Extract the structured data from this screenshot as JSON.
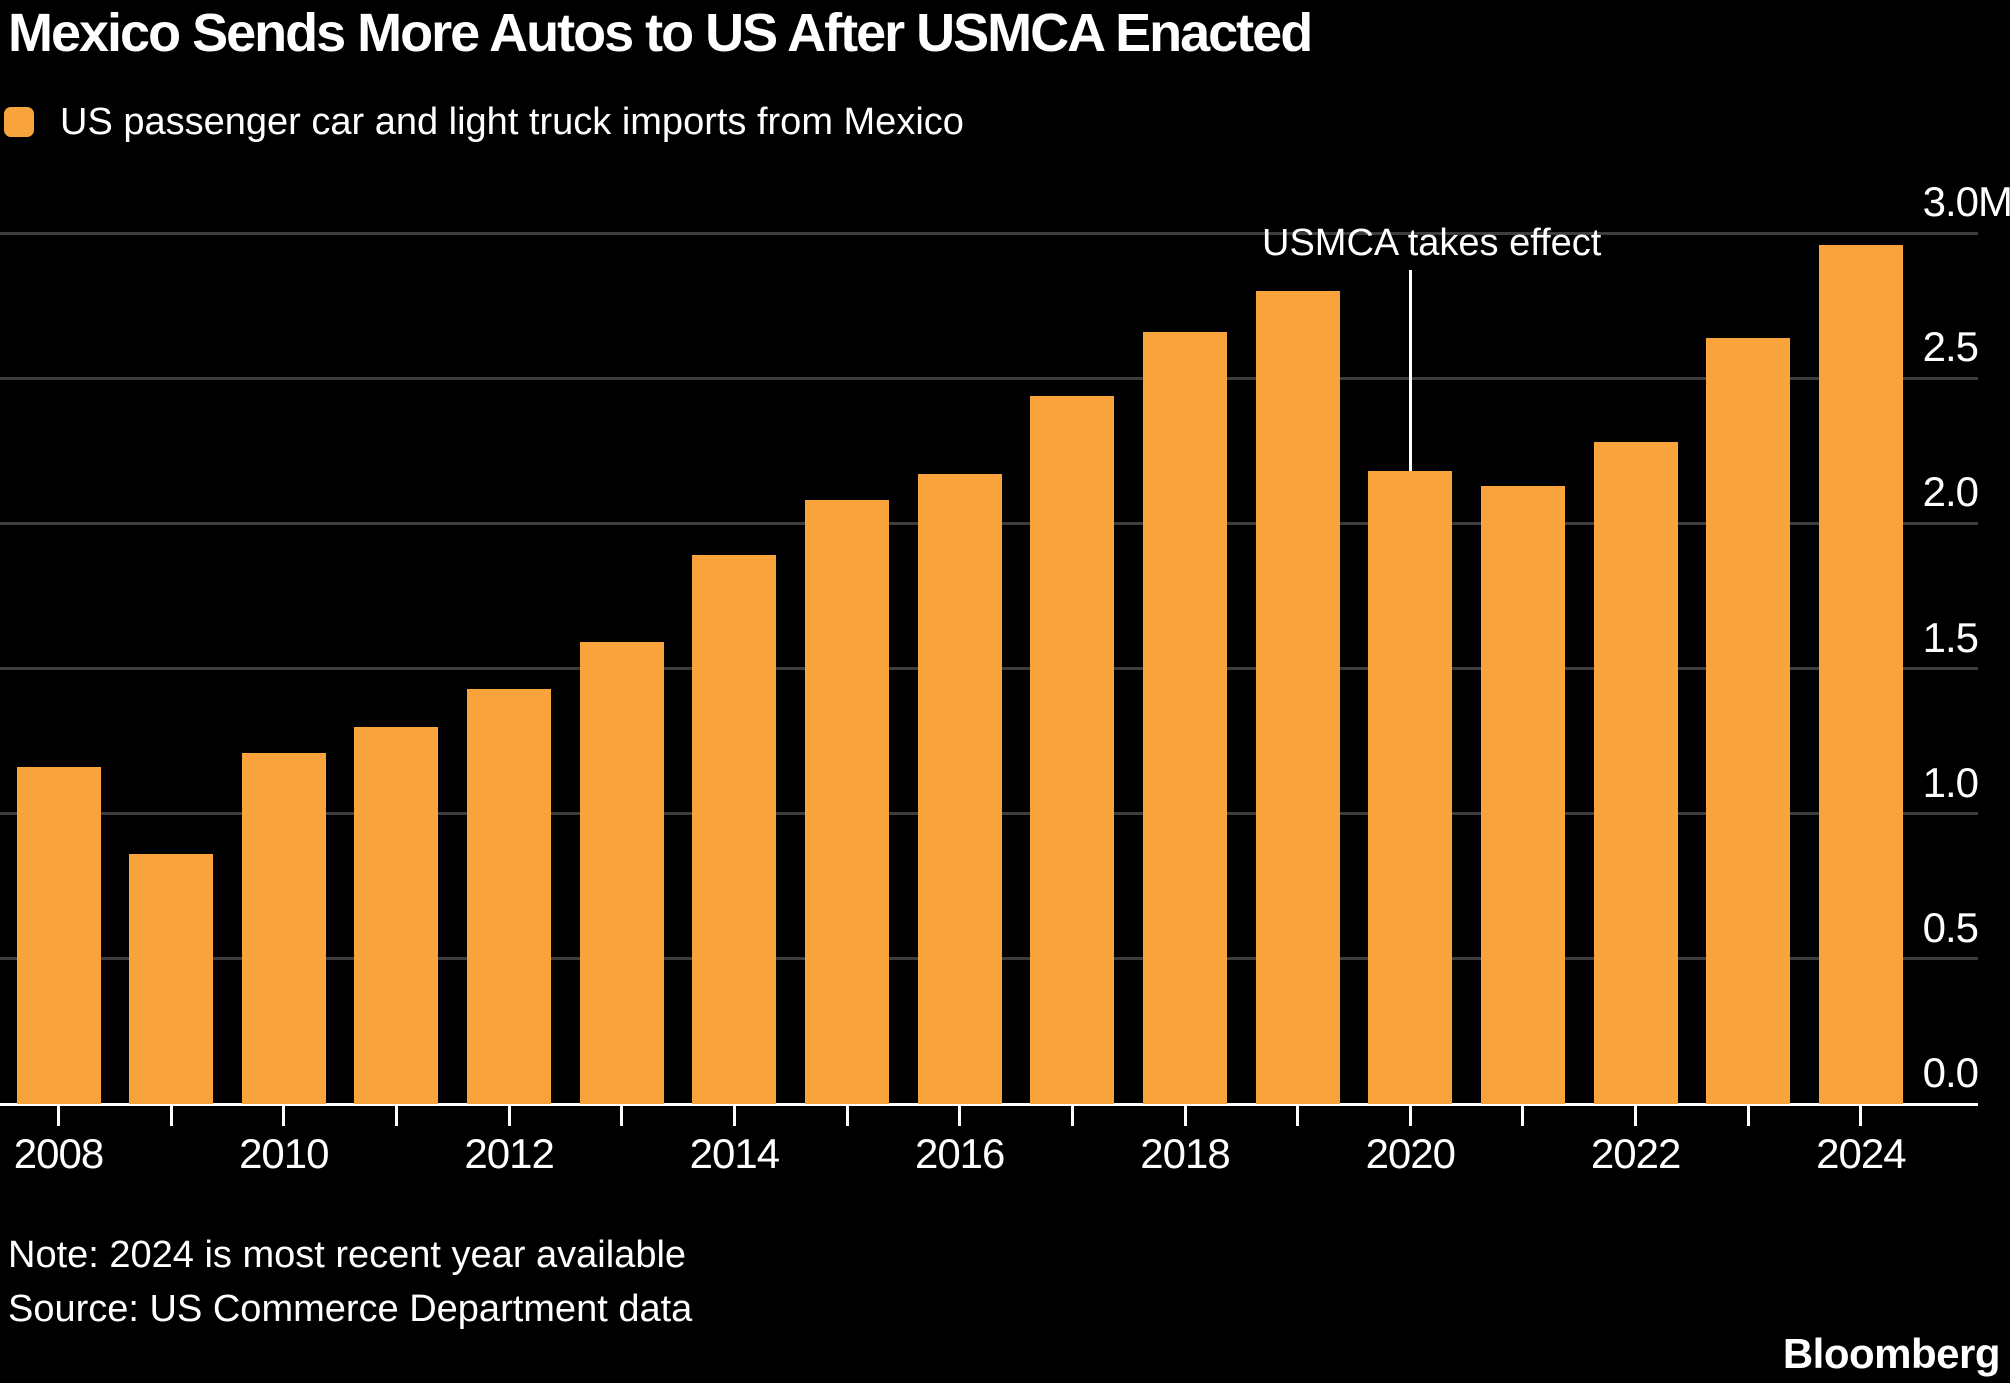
{
  "header": {
    "title": "Mexico Sends More Autos to US After USMCA Enacted",
    "legend_label": "US passenger car and light truck imports from Mexico"
  },
  "annotation": {
    "text": "USMCA takes effect",
    "year": 2020
  },
  "footer": {
    "note": "Note: 2024 is most recent year available",
    "source": "Source: US Commerce Department data",
    "logo": "Bloomberg"
  },
  "colors": {
    "background": "#000000",
    "bar": "#F8A33C",
    "gridline": "#3D3D3D",
    "axis_line": "#FFFFFF",
    "text": "#FFFFFF"
  },
  "chart_data": {
    "type": "bar",
    "title": "Mexico Sends More Autos to US After USMCA Enacted",
    "series_label": "US passenger car and light truck imports from Mexico",
    "unit": "million vehicles",
    "categories": [
      2008,
      2009,
      2010,
      2011,
      2012,
      2013,
      2014,
      2015,
      2016,
      2017,
      2018,
      2019,
      2020,
      2021,
      2022,
      2023,
      2024
    ],
    "values": [
      1.16,
      0.86,
      1.21,
      1.3,
      1.43,
      1.59,
      1.89,
      2.08,
      2.17,
      2.44,
      2.66,
      2.8,
      2.18,
      2.13,
      2.28,
      2.64,
      2.96
    ],
    "ylim": [
      0,
      3.0
    ],
    "y_ticks": [
      {
        "value": 3.0,
        "label": "3.0",
        "unit": "M"
      },
      {
        "value": 2.5,
        "label": "2.5",
        "unit": ""
      },
      {
        "value": 2.0,
        "label": "2.0",
        "unit": ""
      },
      {
        "value": 1.5,
        "label": "1.5",
        "unit": ""
      },
      {
        "value": 1.0,
        "label": "1.0",
        "unit": ""
      },
      {
        "value": 0.5,
        "label": "0.5",
        "unit": ""
      },
      {
        "value": 0.0,
        "label": "0.0",
        "unit": ""
      }
    ],
    "x_tick_labels": [
      "2008",
      "2010",
      "2012",
      "2014",
      "2016",
      "2018",
      "2020",
      "2022",
      "2024"
    ],
    "grid": "horizontal",
    "legend_position": "top-left",
    "annotations": [
      {
        "text": "USMCA takes effect",
        "year": 2020
      }
    ]
  }
}
